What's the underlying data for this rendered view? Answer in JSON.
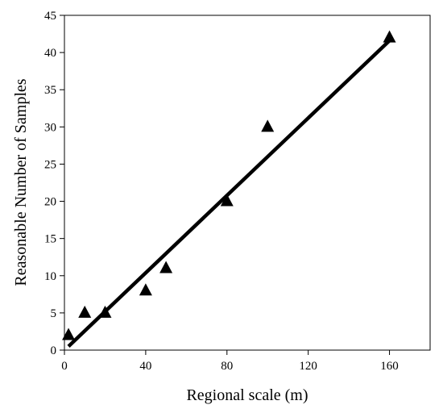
{
  "chart_data": {
    "type": "scatter",
    "xlabel": "Regional scale (m)",
    "ylabel": "Reasonable Number of Samples",
    "xlim": [
      0,
      180
    ],
    "ylim": [
      0,
      45
    ],
    "x_ticks": [
      "0",
      "40",
      "80",
      "120",
      "160"
    ],
    "y_ticks": [
      "0",
      "5",
      "10",
      "15",
      "20",
      "25",
      "30",
      "35",
      "40",
      "45"
    ],
    "grid": false,
    "legend": "none",
    "marker": "filled-triangle",
    "series": [
      {
        "x": [
          2,
          10,
          20,
          40,
          50,
          80,
          100,
          160
        ],
        "y": [
          2,
          5,
          5,
          8,
          11,
          20,
          30,
          42
        ]
      }
    ],
    "trendline": {
      "x": [
        2,
        160
      ],
      "y": [
        0.5,
        41.6
      ]
    },
    "colors": {
      "marker": "#000000",
      "line": "#000000",
      "axis": "#000000"
    }
  }
}
